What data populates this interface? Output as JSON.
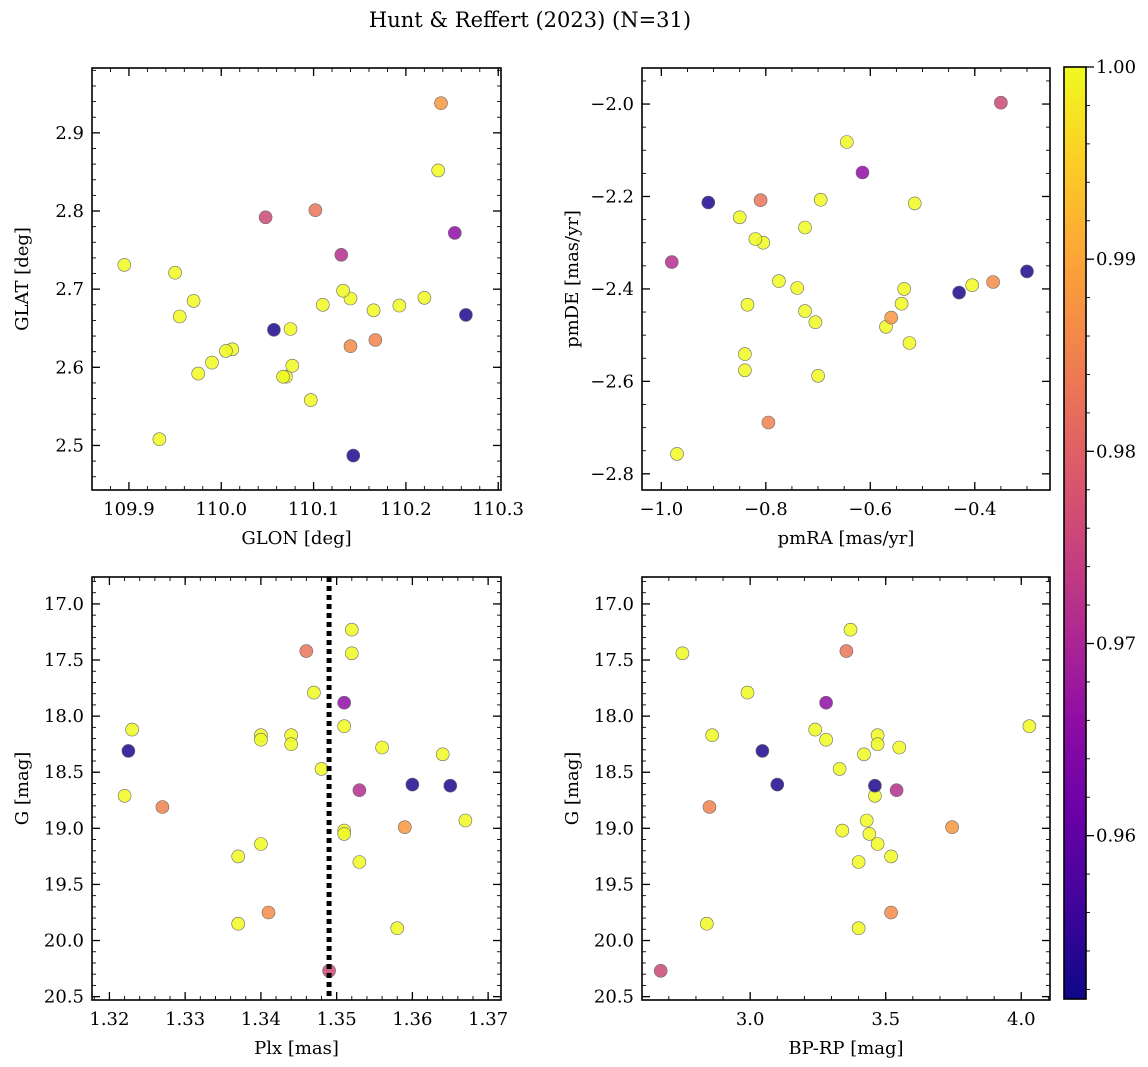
{
  "title": "Hunt & Reffert (2023) (N=31)",
  "chart_data": {
    "type": "scatter",
    "colorbar": {
      "cmap": "plasma",
      "range": [
        0.9515,
        1.0
      ],
      "ticks": [
        0.96,
        0.97,
        0.98,
        0.99,
        1.0
      ],
      "tick_labels": [
        "0.96",
        "0.97",
        "0.98",
        "0.99",
        "1.00"
      ]
    },
    "color_values": [
      1.0,
      1.0,
      1.0,
      1.0,
      1.0,
      1.0,
      1.0,
      1.0,
      1.0,
      1.0,
      1.0,
      1.0,
      1.0,
      1.0,
      1.0,
      1.0,
      1.0,
      1.0,
      1.0,
      1.0,
      1.0,
      0.988,
      0.9865,
      0.985,
      0.983,
      0.976,
      0.9715,
      0.966,
      0.953,
      0.953,
      0.953
    ],
    "columns": {
      "GLON": [
        110.235,
        109.895,
        109.95,
        110.193,
        110.22,
        109.955,
        109.97,
        110.165,
        110.14,
        110.132,
        110.11,
        110.075,
        110.07,
        110.077,
        110.012,
        110.005,
        109.99,
        109.975,
        110.067,
        110.097,
        109.933,
        110.238,
        110.14,
        110.167,
        110.102,
        110.048,
        110.13,
        110.253,
        110.265,
        110.057,
        110.143
      ],
      "GLAT": [
        2.852,
        2.731,
        2.721,
        2.679,
        2.689,
        2.665,
        2.685,
        2.673,
        2.688,
        2.698,
        2.68,
        2.649,
        2.588,
        2.602,
        2.623,
        2.621,
        2.606,
        2.592,
        2.588,
        2.558,
        2.508,
        2.938,
        2.627,
        2.635,
        2.801,
        2.792,
        2.744,
        2.772,
        2.667,
        2.648,
        2.487
      ],
      "pmRA": [
        -0.645,
        -0.695,
        -0.515,
        -0.85,
        -0.725,
        -0.775,
        -0.805,
        -0.405,
        -0.535,
        -0.835,
        -0.74,
        -0.725,
        -0.54,
        -0.705,
        -0.57,
        -0.525,
        -0.84,
        -0.84,
        -0.7,
        -0.97,
        -0.82,
        -0.56,
        -0.365,
        -0.795,
        -0.81,
        -0.35,
        -0.98,
        -0.615,
        -0.91,
        -0.3,
        -0.43
      ],
      "pmDE": [
        -2.082,
        -2.207,
        -2.215,
        -2.245,
        -2.267,
        -2.383,
        -2.3,
        -2.392,
        -2.4,
        -2.434,
        -2.398,
        -2.448,
        -2.432,
        -2.472,
        -2.482,
        -2.517,
        -2.541,
        -2.576,
        -2.588,
        -2.757,
        -2.292,
        -2.462,
        -2.385,
        -2.689,
        -2.208,
        -1.997,
        -2.342,
        -2.148,
        -2.213,
        -2.362,
        -2.408
      ],
      "Plx": [
        1.352,
        1.352,
        1.347,
        1.351,
        1.356,
        1.34,
        1.34,
        1.344,
        1.344,
        1.364,
        1.348,
        1.323,
        1.322,
        1.351,
        1.351,
        1.367,
        1.34,
        1.337,
        1.353,
        1.337,
        1.358,
        1.359,
        1.341,
        1.327,
        1.346,
        1.349,
        1.353,
        1.351,
        1.3225,
        1.36,
        1.365
      ],
      "G": [
        17.23,
        17.44,
        17.79,
        18.09,
        18.28,
        18.17,
        18.21,
        18.17,
        18.25,
        18.34,
        18.47,
        18.12,
        18.71,
        19.02,
        19.05,
        18.93,
        19.14,
        19.25,
        19.3,
        19.85,
        19.89,
        18.99,
        19.75,
        18.81,
        17.42,
        20.27,
        18.66,
        17.88,
        18.31,
        18.61,
        18.62
      ],
      "BP_RP": [
        3.37,
        2.75,
        2.99,
        4.03,
        3.55,
        2.86,
        3.28,
        3.47,
        3.47,
        3.42,
        3.33,
        3.24,
        3.46,
        3.34,
        3.44,
        3.43,
        3.47,
        3.52,
        3.4,
        2.84,
        3.4,
        3.745,
        3.52,
        2.85,
        3.355,
        2.67,
        3.54,
        3.28,
        3.045,
        3.1,
        3.46
      ]
    },
    "panels": [
      {
        "x": "GLON",
        "y": "GLAT",
        "xlabel": "GLON [deg]",
        "ylabel": "GLAT [deg]",
        "xlim": [
          109.86,
          110.303
        ],
        "ylim": [
          2.443,
          2.983
        ],
        "xticks": [
          109.9,
          110.0,
          110.1,
          110.2,
          110.3
        ],
        "xtick_labels": [
          "109.9",
          "110.0",
          "110.1",
          "110.2",
          "110.3"
        ],
        "yticks": [
          2.5,
          2.6,
          2.7,
          2.8,
          2.9
        ],
        "ytick_labels": [
          "2.5",
          "2.6",
          "2.7",
          "2.8",
          "2.9"
        ],
        "xminor": 0.02,
        "yminor": 0.02,
        "invert_y": false
      },
      {
        "x": "pmRA",
        "y": "pmDE",
        "xlabel": "pmRA [mas/yr]",
        "ylabel": "pmDE [mas/yr]",
        "xlim": [
          -1.037,
          -0.256
        ],
        "ylim": [
          -2.835,
          -1.922
        ],
        "xticks": [
          -1.0,
          -0.8,
          -0.6,
          -0.4
        ],
        "xtick_labels": [
          "−1.0",
          "−0.8",
          "−0.6",
          "−0.4"
        ],
        "yticks": [
          -2.8,
          -2.6,
          -2.4,
          -2.2,
          -2.0
        ],
        "ytick_labels": [
          "−2.8",
          "−2.6",
          "−2.4",
          "−2.2",
          "−2.0"
        ],
        "xminor": 0.05,
        "yminor": 0.05,
        "invert_y": false
      },
      {
        "x": "Plx",
        "y": "G",
        "xlabel": "Plx [mas]",
        "ylabel": "G [mag]",
        "xlim": [
          1.3177,
          1.3717
        ],
        "ylim": [
          16.76,
          20.53
        ],
        "xticks": [
          1.32,
          1.33,
          1.34,
          1.35,
          1.36,
          1.37
        ],
        "xtick_labels": [
          "1.32",
          "1.33",
          "1.34",
          "1.35",
          "1.36",
          "1.37"
        ],
        "yticks": [
          17.0,
          17.5,
          18.0,
          18.5,
          19.0,
          19.5,
          20.0,
          20.5
        ],
        "ytick_labels": [
          "17.0",
          "17.5",
          "18.0",
          "18.5",
          "19.0",
          "19.5",
          "20.0",
          "20.5"
        ],
        "xminor": 0.002,
        "yminor": 0.1,
        "invert_y": true,
        "vline": 1.349
      },
      {
        "x": "BP_RP",
        "y": "G",
        "xlabel": "BP-RP [mag]",
        "ylabel": "G [mag]",
        "xlim": [
          2.601,
          4.106
        ],
        "ylim": [
          16.76,
          20.53
        ],
        "xticks": [
          3.0,
          3.5,
          4.0
        ],
        "xtick_labels": [
          "3.0",
          "3.5",
          "4.0"
        ],
        "yticks": [
          17.0,
          17.5,
          18.0,
          18.5,
          19.0,
          19.5,
          20.0,
          20.5
        ],
        "ytick_labels": [
          "17.0",
          "17.5",
          "18.0",
          "18.5",
          "19.0",
          "19.5",
          "20.0",
          "20.5"
        ],
        "xminor": 0.1,
        "yminor": 0.1,
        "invert_y": true
      }
    ]
  }
}
